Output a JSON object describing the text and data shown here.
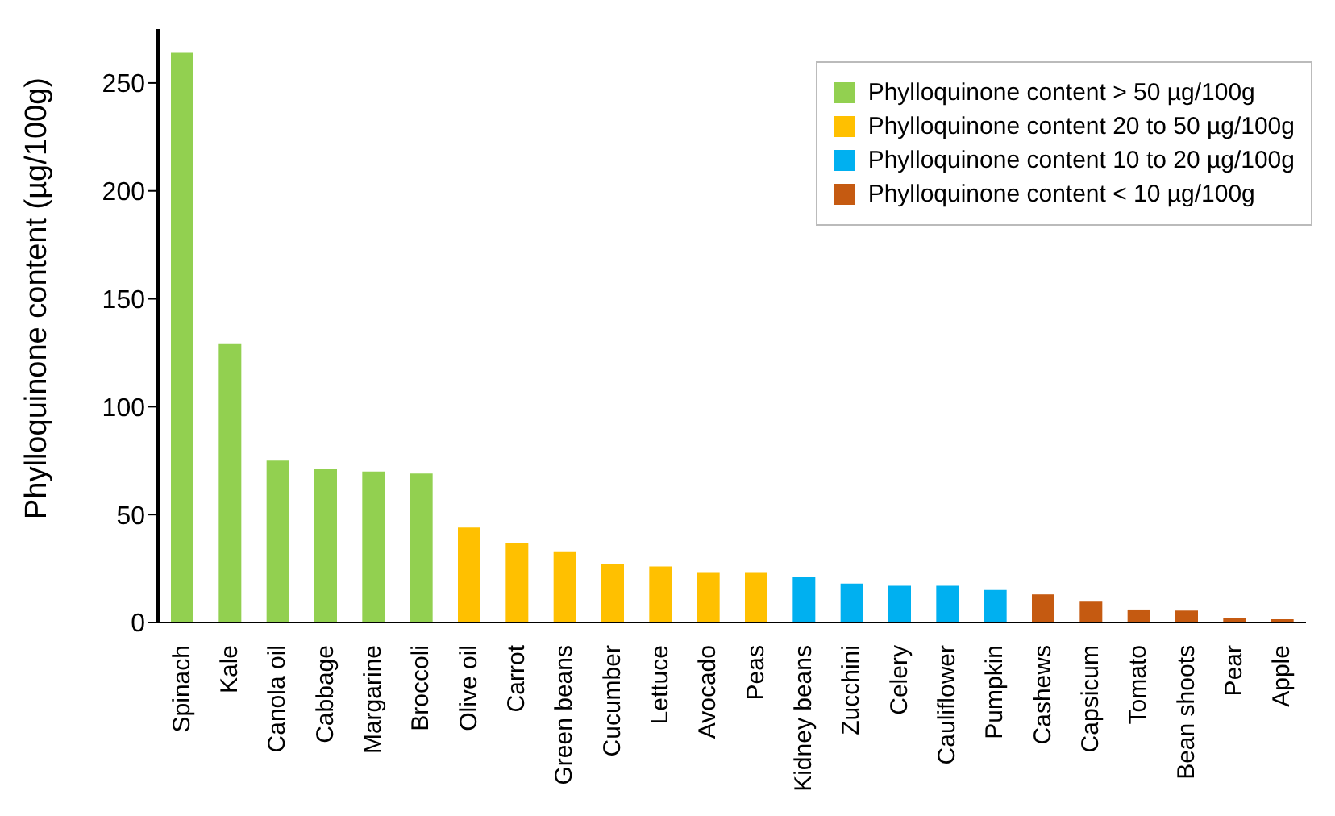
{
  "chart_data": {
    "type": "bar",
    "ylabel": "Phylloquinone content (µg/100g)",
    "categories": [
      "Spinach",
      "Kale",
      "Canola oil",
      "Cabbage",
      "Margarine",
      "Broccoli",
      "Olive oil",
      "Carrot",
      "Green beans",
      "Cucumber",
      "Lettuce",
      "Avocado",
      "Peas",
      "Kidney beans",
      "Zucchini",
      "Celery",
      "Cauliflower",
      "Pumpkin",
      "Cashews",
      "Capsicum",
      "Tomato",
      "Bean shoots",
      "Pear",
      "Apple"
    ],
    "stacked": true,
    "series": [
      {
        "name": "Phylloquinone content > 50 µg/100g",
        "color": "#92d050",
        "values": [
          264,
          129,
          75,
          71,
          70,
          69,
          null,
          null,
          null,
          null,
          null,
          null,
          null,
          null,
          null,
          null,
          null,
          null,
          null,
          null,
          null,
          null,
          null,
          null
        ]
      },
      {
        "name": "Phylloquinone content 20 to 50 µg/100g",
        "color": "#ffc000",
        "values": [
          null,
          null,
          null,
          null,
          null,
          null,
          44,
          37,
          33,
          27,
          26,
          23,
          23,
          null,
          null,
          null,
          null,
          null,
          null,
          null,
          null,
          null,
          null,
          null
        ]
      },
      {
        "name": "Phylloquinone content 10 to 20 µg/100g",
        "color": "#00b0f0",
        "values": [
          null,
          null,
          null,
          null,
          null,
          null,
          null,
          null,
          null,
          null,
          null,
          null,
          null,
          21,
          18,
          17,
          17,
          15,
          null,
          null,
          null,
          null,
          null,
          null
        ]
      },
      {
        "name": "Phylloquinone content < 10 µg/100g",
        "color": "#c55a11",
        "values": [
          null,
          null,
          null,
          null,
          null,
          null,
          null,
          null,
          null,
          null,
          null,
          null,
          null,
          null,
          null,
          null,
          null,
          null,
          13,
          10,
          6,
          5.5,
          2,
          1.5
        ]
      }
    ],
    "ylim": [
      0,
      275
    ],
    "yticks": [
      0,
      50,
      100,
      150,
      200,
      250
    ],
    "grid": false,
    "legend": "top right"
  }
}
